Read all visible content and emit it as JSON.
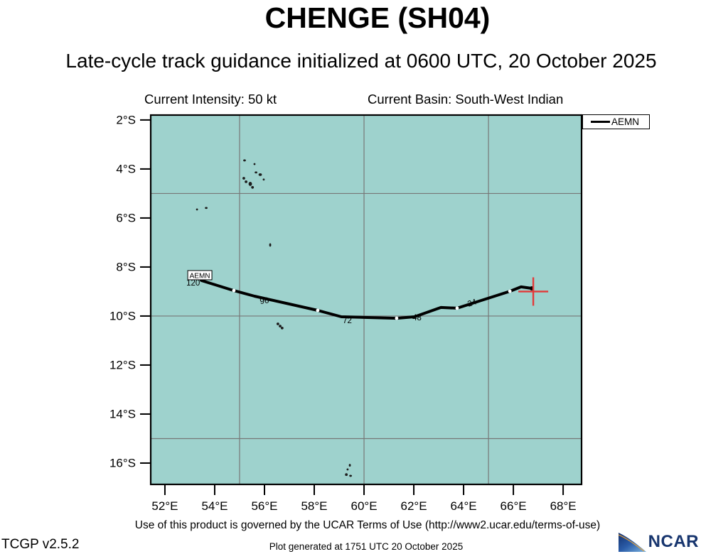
{
  "header": {
    "title": "CHENGE (SH04)",
    "subtitle": "Late-cycle track guidance initialized at 0600 UTC, 20 October 2025",
    "intensity_label": "Current Intensity: 50 kt",
    "basin_label": "Current Basin: South-West Indian"
  },
  "legend": {
    "entries": [
      {
        "label": "AEMN",
        "color": "#000000"
      }
    ]
  },
  "footer": {
    "terms": "Use of this product is governed by the UCAR Terms of Use (http://www2.ucar.edu/terms-of-use)",
    "version": "TCGP v2.5.2",
    "generated": "Plot generated at 1751 UTC   20 October 2025",
    "logo_text": "NCAR"
  },
  "chart_data": {
    "type": "line",
    "title": "CHENGE (SH04)",
    "subtitle": "Late-cycle track guidance initialized at 0600 UTC, 20 October 2025",
    "map": {
      "bg_color": "#9ed2cd",
      "grid_color": "#777777",
      "border_color": "#000000",
      "island_color": "#1e1e1e",
      "lon_min": 51.43,
      "lon_max": 68.74,
      "lat_top": 1.8,
      "lat_bottom": 16.87,
      "grid_lons": [
        55,
        60,
        65
      ],
      "grid_lats": [
        5,
        10,
        15
      ],
      "x_ticks": [
        {
          "lon": 52,
          "label": "52°E"
        },
        {
          "lon": 54,
          "label": "54°E"
        },
        {
          "lon": 56,
          "label": "56°E"
        },
        {
          "lon": 58,
          "label": "58°E"
        },
        {
          "lon": 60,
          "label": "60°E"
        },
        {
          "lon": 62,
          "label": "62°E"
        },
        {
          "lon": 64,
          "label": "64°E"
        },
        {
          "lon": 66,
          "label": "66°E"
        },
        {
          "lon": 68,
          "label": "68°E"
        }
      ],
      "y_ticks": [
        {
          "lat": 2,
          "label": "2°S"
        },
        {
          "lat": 4,
          "label": "4°S"
        },
        {
          "lat": 6,
          "label": "6°S"
        },
        {
          "lat": 8,
          "label": "8°S"
        },
        {
          "lat": 10,
          "label": "10°S"
        },
        {
          "lat": 12,
          "label": "12°S"
        },
        {
          "lat": 14,
          "label": "14°S"
        },
        {
          "lat": 16,
          "label": "16°S"
        }
      ]
    },
    "series": [
      {
        "name": "AEMN",
        "color": "#000000",
        "points": [
          {
            "lon": 53.46,
            "lat": 8.55,
            "tau": 120,
            "label": "120",
            "label_dx": -21,
            "label_dy": 7,
            "label_rotate": 0,
            "name_box": true
          },
          {
            "lon": 54.77,
            "lat": 8.96,
            "marker": "white-dot"
          },
          {
            "lon": 55.6,
            "lat": 9.19,
            "tau": 96,
            "label": "96",
            "label_dx": 8,
            "label_dy": 11,
            "label_rotate": -8
          },
          {
            "lon": 58.14,
            "lat": 9.77,
            "marker": "white-dot"
          },
          {
            "lon": 59.09,
            "lat": 10.03,
            "tau": 72,
            "label": "72",
            "label_dx": 2,
            "label_dy": 9,
            "label_rotate": 0
          },
          {
            "lon": 61.31,
            "lat": 10.09,
            "marker": "white-dot"
          },
          {
            "lon": 62.03,
            "lat": 10.03,
            "tau": 48,
            "label": "48",
            "label_dx": -3,
            "label_dy": 5,
            "label_rotate": 0
          },
          {
            "lon": 63.09,
            "lat": 9.65
          },
          {
            "lon": 63.74,
            "lat": 9.68,
            "marker": "white-dot",
            "tau": 24,
            "label": "24",
            "label_dx": 16,
            "label_dy": -2,
            "label_rotate": -18
          },
          {
            "lon": 65.86,
            "lat": 8.99,
            "marker": "white-dot"
          },
          {
            "lon": 66.31,
            "lat": 8.81
          },
          {
            "lon": 66.74,
            "lat": 8.87,
            "marker": "end-dot"
          }
        ]
      }
    ],
    "current_position": {
      "lon": 66.8,
      "lat": 9.0,
      "marker": "red-cross",
      "color": "#e23a3a"
    },
    "islands": [
      {
        "lon": 55.2,
        "lat": 3.65,
        "w": 3,
        "h": 2
      },
      {
        "lon": 55.6,
        "lat": 3.8,
        "w": 2,
        "h": 2
      },
      {
        "lon": 55.66,
        "lat": 4.14,
        "w": 3,
        "h": 2
      },
      {
        "lon": 55.83,
        "lat": 4.23,
        "w": 4,
        "h": 3
      },
      {
        "lon": 55.97,
        "lat": 4.43,
        "w": 2,
        "h": 2
      },
      {
        "lon": 55.17,
        "lat": 4.38,
        "w": 3,
        "h": 3
      },
      {
        "lon": 55.26,
        "lat": 4.52,
        "w": 3,
        "h": 3
      },
      {
        "lon": 55.43,
        "lat": 4.61,
        "w": 4,
        "h": 5
      },
      {
        "lon": 55.52,
        "lat": 4.75,
        "w": 3,
        "h": 3
      },
      {
        "lon": 53.29,
        "lat": 5.65,
        "w": 2,
        "h": 2
      },
      {
        "lon": 53.66,
        "lat": 5.59,
        "w": 3,
        "h": 2
      },
      {
        "lon": 56.23,
        "lat": 7.1,
        "w": 2,
        "h": 4
      },
      {
        "lon": 56.54,
        "lat": 10.32,
        "w": 3,
        "h": 3
      },
      {
        "lon": 56.63,
        "lat": 10.41,
        "w": 3,
        "h": 3
      },
      {
        "lon": 56.71,
        "lat": 10.49,
        "w": 3,
        "h": 3
      },
      {
        "lon": 59.43,
        "lat": 16.09,
        "w": 2,
        "h": 3
      },
      {
        "lon": 59.34,
        "lat": 16.26,
        "w": 2,
        "h": 2
      },
      {
        "lon": 59.29,
        "lat": 16.47,
        "w": 3,
        "h": 3
      },
      {
        "lon": 59.46,
        "lat": 16.52,
        "w": 3,
        "h": 2
      }
    ]
  }
}
